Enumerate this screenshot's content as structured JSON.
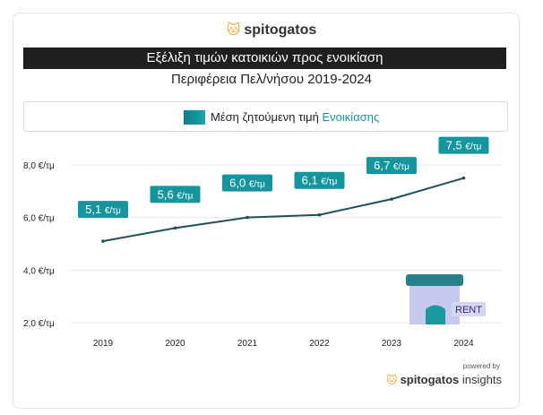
{
  "header": {
    "brand": "spitogatos",
    "title": "Εξέλιξη τιμών κατοικιών προς ενοικίαση",
    "subtitle": "Περιφέρεια Πελ/νήσου 2019-2024"
  },
  "legend": {
    "label_prefix": "Μέση ζητούμενη τιμή",
    "label_accent": "Ενοικίασης"
  },
  "illustration": {
    "badge": "RENT"
  },
  "footer": {
    "powered_by": "powered by",
    "brand": "spitogatos",
    "brand_suffix": "insights"
  },
  "colors": {
    "accent": "#15969f",
    "line": "#1e4f5a",
    "grid": "#e6e6e6",
    "title_bg": "#1f1f1f"
  },
  "chart_data": {
    "type": "line",
    "title": "Εξέλιξη τιμών κατοικιών προς ενοικίαση",
    "subtitle": "Περιφέρεια Πελ/νήσου 2019-2024",
    "categories": [
      "2019",
      "2020",
      "2021",
      "2022",
      "2023",
      "2024"
    ],
    "series": [
      {
        "name": "Μέση ζητούμενη τιμή Ενοικίασης",
        "values": [
          5.1,
          5.6,
          6.0,
          6.1,
          6.7,
          7.5
        ],
        "labels": [
          "5,1 €/τμ",
          "5,6 €/τμ",
          "6,0 €/τμ",
          "6,1 €/τμ",
          "6,7 €/τμ",
          "7,5 €/τμ"
        ]
      }
    ],
    "yticks": [
      2.0,
      4.0,
      6.0,
      8.0
    ],
    "ytick_labels": [
      "2,0 €/τμ",
      "4,0 €/τμ",
      "6,0 €/τμ",
      "8,0 €/τμ"
    ],
    "ylim": [
      2.0,
      8.0
    ],
    "grid": true,
    "legend_position": "top-center"
  }
}
